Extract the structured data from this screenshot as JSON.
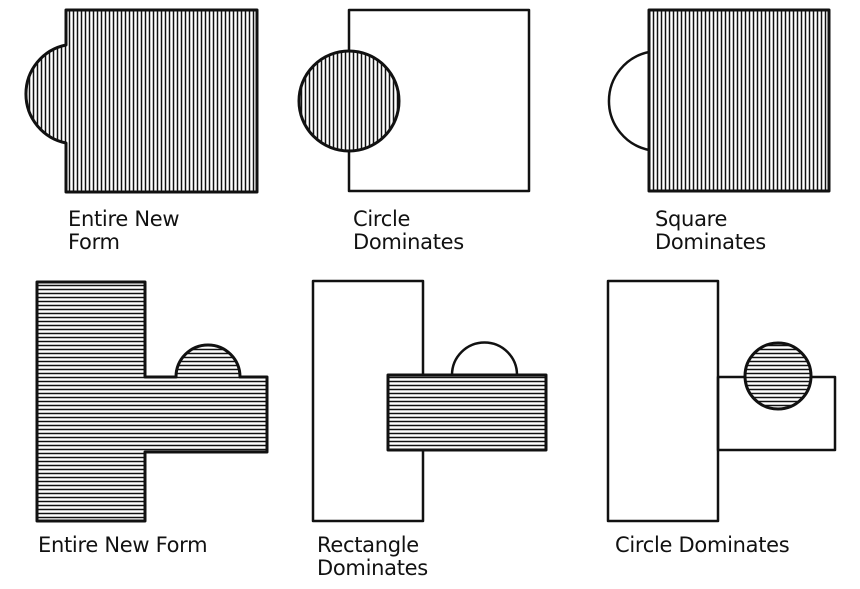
{
  "diagram": {
    "panels": [
      {
        "id": "entire-new-form-1",
        "caption": "Entire New\nForm"
      },
      {
        "id": "circle-dominates-1",
        "caption": "Circle\nDominates"
      },
      {
        "id": "square-dominates",
        "caption": "Square\nDominates"
      },
      {
        "id": "entire-new-form-2",
        "caption": "Entire New Form"
      },
      {
        "id": "rectangle-dominates",
        "caption": "Rectangle\nDominates"
      },
      {
        "id": "circle-dominates-2",
        "caption": "Circle Dominates"
      }
    ],
    "colors": {
      "ink": "#111111",
      "paper": "#ffffff"
    }
  }
}
